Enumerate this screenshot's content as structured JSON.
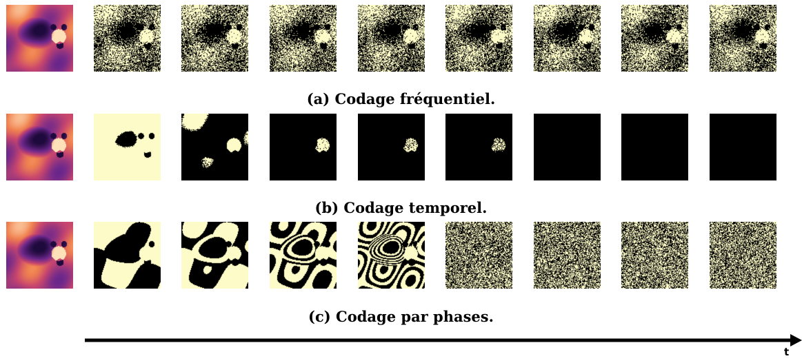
{
  "colors": {
    "background": "#ffffff",
    "spike": "#fdfbc8",
    "off": "#000000",
    "original_palette": [
      "#f9a05a",
      "#e8714c",
      "#c2416e",
      "#7d2c8b",
      "#3a1d6e",
      "#ffe2b8"
    ]
  },
  "rows": [
    {
      "caption": "(a) Codage fréquentiel.",
      "encoding": "frequency",
      "tiles": [
        {
          "kind": "original",
          "label": "original-image"
        },
        {
          "kind": "spikes",
          "density": 0.55
        },
        {
          "kind": "spikes",
          "density": 0.55
        },
        {
          "kind": "spikes",
          "density": 0.55
        },
        {
          "kind": "spikes",
          "density": 0.55
        },
        {
          "kind": "spikes",
          "density": 0.55
        },
        {
          "kind": "spikes",
          "density": 0.55
        },
        {
          "kind": "spikes",
          "density": 0.55
        },
        {
          "kind": "spikes",
          "density": 0.55
        }
      ]
    },
    {
      "caption": "(b) Codage temporel.",
      "encoding": "temporal",
      "tiles": [
        {
          "kind": "original",
          "label": "original-image"
        },
        {
          "kind": "threshold",
          "density": 0.88
        },
        {
          "kind": "threshold",
          "density": 0.25
        },
        {
          "kind": "threshold",
          "density": 0.02
        },
        {
          "kind": "threshold",
          "density": 0.01
        },
        {
          "kind": "threshold",
          "density": 0.004
        },
        {
          "kind": "threshold",
          "density": 0.0
        },
        {
          "kind": "threshold",
          "density": 0.0
        },
        {
          "kind": "threshold",
          "density": 0.0
        }
      ]
    },
    {
      "caption": "(c) Codage par phases.",
      "encoding": "phase",
      "tiles": [
        {
          "kind": "original",
          "label": "original-image"
        },
        {
          "kind": "phase",
          "bit": 1
        },
        {
          "kind": "phase",
          "bit": 2
        },
        {
          "kind": "phase",
          "bit": 3
        },
        {
          "kind": "phase",
          "bit": 4
        },
        {
          "kind": "phase",
          "bit": 5
        },
        {
          "kind": "phase",
          "bit": 6
        },
        {
          "kind": "phase",
          "bit": 7
        },
        {
          "kind": "phase",
          "bit": 8
        }
      ]
    }
  ],
  "axis": {
    "label": "t"
  }
}
